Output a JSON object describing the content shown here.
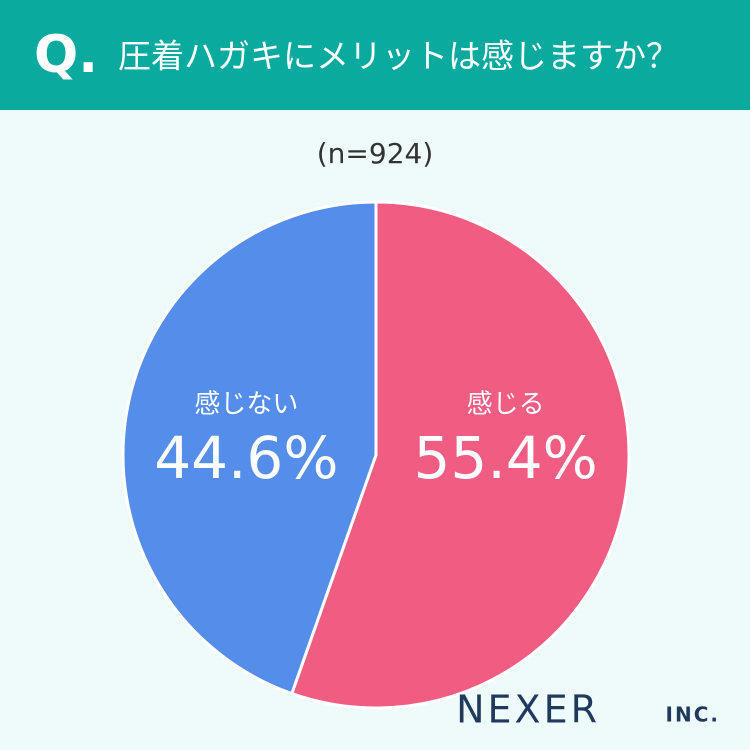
{
  "chart_data": {
    "type": "pie",
    "q_label": "Q.",
    "title": "圧着ハガキにメリットは感じますか？",
    "subtitle": "(n=924)",
    "categories": [
      "感じる",
      "感じない"
    ],
    "values": [
      55.4,
      44.6
    ],
    "value_labels": [
      "55.4%",
      "44.6%"
    ],
    "colors": [
      "#f05c82",
      "#558deb"
    ],
    "logo": {
      "name": "NEXER",
      "suffix": "INC."
    }
  }
}
